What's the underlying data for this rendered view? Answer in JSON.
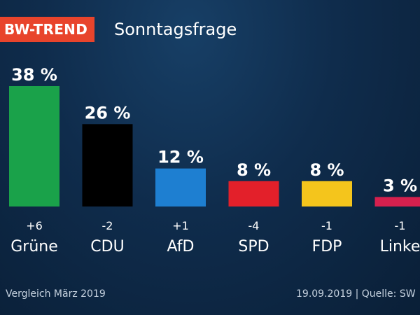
{
  "header": {
    "badge": "BW-TREND",
    "title": "Sonntagsfrage"
  },
  "footer": {
    "left": "Vergleich März 2019",
    "right": "19.09.2019 | Quelle: SW"
  },
  "chart_data": {
    "type": "bar",
    "title": "Sonntagsfrage",
    "categories": [
      "Grüne",
      "CDU",
      "AfD",
      "SPD",
      "FDP",
      "Linke"
    ],
    "values": [
      38,
      26,
      12,
      8,
      8,
      3
    ],
    "value_labels": [
      "38 %",
      "26 %",
      "12 %",
      "8 %",
      "8 %",
      "3 %"
    ],
    "changes": [
      "+6",
      "-2",
      "+1",
      "-4",
      "-1",
      "-1"
    ],
    "colors": [
      "#1aa24a",
      "#000000",
      "#1e7fd1",
      "#e3202a",
      "#f4c51c",
      "#d6204e"
    ],
    "ylim": [
      0,
      38
    ],
    "grid": false,
    "legend": "none"
  }
}
